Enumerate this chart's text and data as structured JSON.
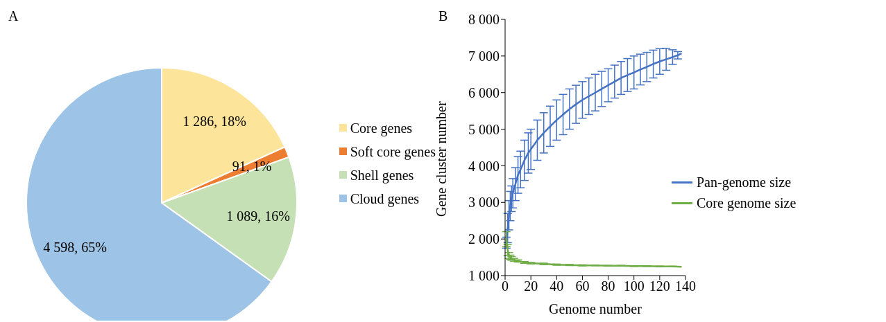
{
  "chart_data": [
    {
      "type": "pie",
      "title": "A",
      "categories": [
        "Core genes",
        "Soft core genes",
        "Shell genes",
        "Cloud genes"
      ],
      "values": [
        1286,
        91,
        1089,
        4598
      ],
      "colors": [
        "#fde49b",
        "#ed7d31",
        "#c5e0b4",
        "#9dc3e6"
      ],
      "value_labels": [
        "1 286, 18%",
        "91, 1%",
        "1 089, 16%",
        "4 598, 65%"
      ],
      "legend": "right"
    },
    {
      "type": "line",
      "title": "B",
      "xlabel": "Genome number",
      "ylabel": "Gene cluster number",
      "xlim": [
        0,
        140
      ],
      "xticks": [
        0,
        20,
        40,
        60,
        80,
        100,
        120,
        140
      ],
      "ylim": [
        1000,
        8000
      ],
      "yticks": [
        {
          "value": 1000,
          "label": "1 000"
        },
        {
          "value": 2000,
          "label": "2 000"
        },
        {
          "value": 3000,
          "label": "3 000"
        },
        {
          "value": 4000,
          "label": "4 000"
        },
        {
          "value": 5000,
          "label": "5 000"
        },
        {
          "value": 6000,
          "label": "6 000"
        },
        {
          "value": 7000,
          "label": "7 000"
        },
        {
          "value": 8000,
          "label": "8 000"
        }
      ],
      "grid": false,
      "legend": "right",
      "marker": "none",
      "line_style": "solid",
      "series": [
        {
          "name": "Pan-genome size",
          "color": "#4472c4",
          "x": [
            1,
            2,
            3,
            4,
            5,
            6,
            8,
            10,
            12,
            15,
            18,
            20,
            25,
            30,
            35,
            40,
            45,
            50,
            55,
            60,
            65,
            70,
            75,
            80,
            85,
            90,
            95,
            100,
            105,
            110,
            115,
            120,
            125,
            130,
            134,
            137
          ],
          "values": [
            1900,
            2300,
            2650,
            2900,
            3100,
            3250,
            3500,
            3750,
            3900,
            4150,
            4350,
            4450,
            4700,
            4900,
            5080,
            5250,
            5400,
            5550,
            5680,
            5800,
            5900,
            6000,
            6100,
            6200,
            6300,
            6400,
            6480,
            6550,
            6630,
            6700,
            6780,
            6850,
            6910,
            6970,
            7020,
            7070
          ],
          "errors": [
            150,
            400,
            400,
            400,
            350,
            400,
            450,
            500,
            500,
            550,
            550,
            550,
            550,
            550,
            550,
            550,
            550,
            550,
            520,
            500,
            500,
            500,
            480,
            450,
            450,
            450,
            450,
            450,
            420,
            400,
            380,
            350,
            300,
            200,
            100,
            0
          ]
        },
        {
          "name": "Core genome size",
          "color": "#70ad47",
          "x": [
            1,
            2,
            3,
            4,
            5,
            7,
            10,
            15,
            20,
            30,
            40,
            50,
            60,
            70,
            80,
            90,
            100,
            110,
            120,
            130,
            137
          ],
          "values": [
            2000,
            1700,
            1550,
            1500,
            1470,
            1430,
            1400,
            1360,
            1340,
            1320,
            1300,
            1290,
            1280,
            1280,
            1270,
            1270,
            1260,
            1260,
            1250,
            1250,
            1240
          ],
          "errors": [
            200,
            150,
            80,
            60,
            50,
            40,
            30,
            25,
            20,
            20,
            15,
            15,
            15,
            10,
            10,
            10,
            10,
            10,
            10,
            5,
            0
          ]
        }
      ]
    }
  ]
}
